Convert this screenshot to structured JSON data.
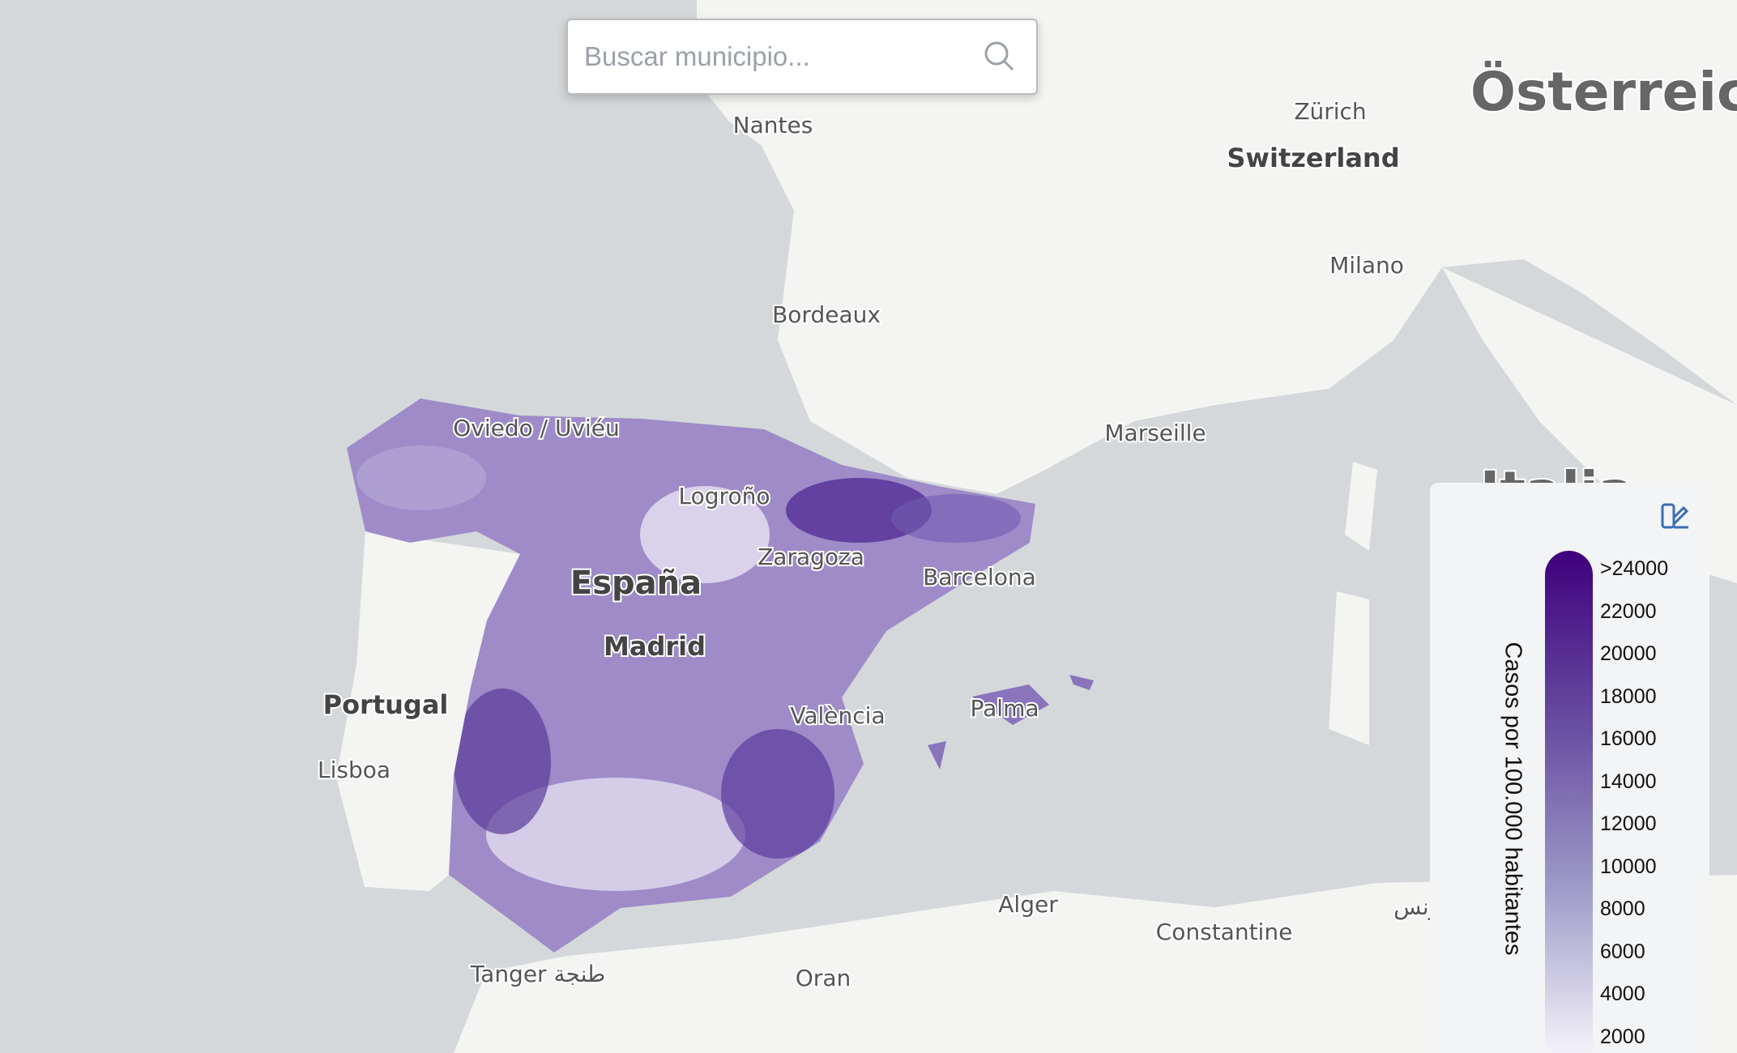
{
  "search": {
    "placeholder": "Buscar municipio..."
  },
  "map_labels": [
    {
      "name": "Nantes"
    },
    {
      "name": "Bordeaux"
    },
    {
      "name": "Zürich"
    },
    {
      "name": "Switzerland"
    },
    {
      "name": "Milano"
    },
    {
      "name": "Marseille"
    },
    {
      "name": "Oviedo / Uviéu"
    },
    {
      "name": "Logroño"
    },
    {
      "name": "Zaragoza"
    },
    {
      "name": "España"
    },
    {
      "name": "Madrid"
    },
    {
      "name": "Barcelona"
    },
    {
      "name": "Portugal"
    },
    {
      "name": "Lisboa"
    },
    {
      "name": "València"
    },
    {
      "name": "Palma"
    },
    {
      "name": "Alger"
    },
    {
      "name": "Constantine"
    },
    {
      "name": "Oran"
    },
    {
      "name": "Tanger طنجة"
    },
    {
      "name": "Italia"
    },
    {
      "name": "Österreich"
    },
    {
      "name": "تونس"
    }
  ],
  "legend": {
    "title": "Casos por 100.000 habitantes",
    "ticks": [
      ">24000",
      "22000",
      "20000",
      "18000",
      "16000",
      "14000",
      "12000",
      "10000",
      "8000",
      "6000",
      "4000",
      "2000"
    ]
  }
}
